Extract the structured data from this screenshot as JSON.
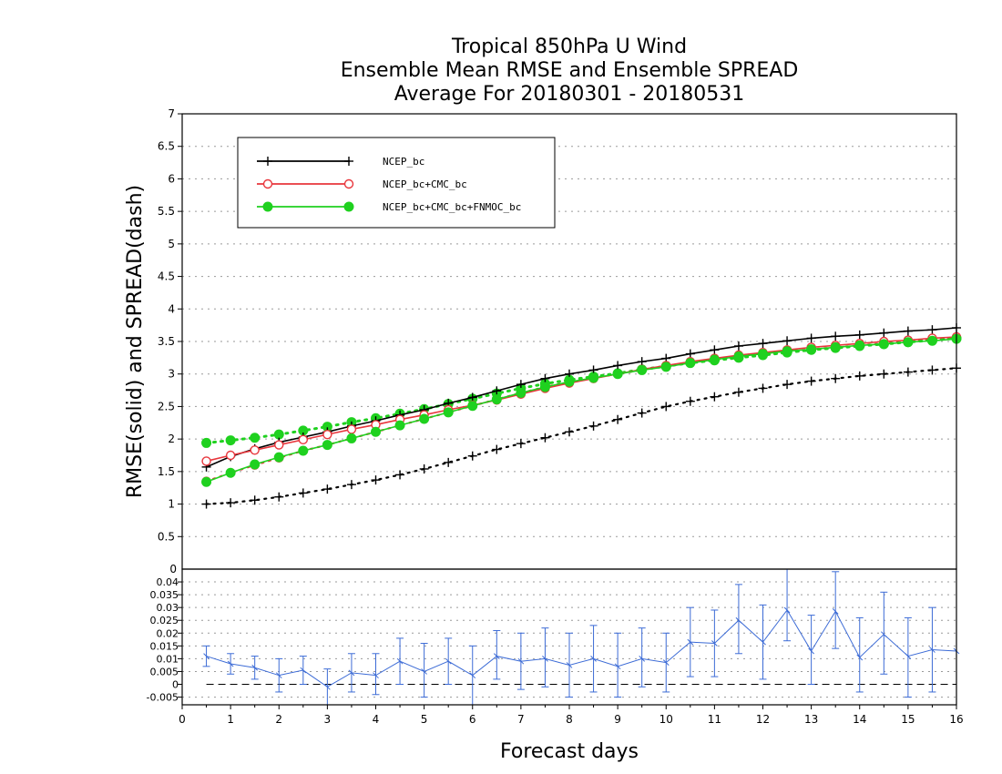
{
  "chart_data": [
    {
      "type": "line",
      "title": [
        "Tropical 850hPa U Wind",
        "Ensemble Mean RMSE and Ensemble SPREAD",
        "Average For 20180301 - 20180531"
      ],
      "ylabel": "RMSE(solid) and SPREAD(dash)",
      "xlim": [
        0,
        16
      ],
      "ylim": [
        0,
        7
      ],
      "yticks": [
        "0",
        "0.5",
        "1",
        "1.5",
        "2",
        "2.5",
        "3",
        "3.5",
        "4",
        "4.5",
        "5",
        "5.5",
        "6",
        "6.5",
        "7"
      ],
      "grid": true,
      "legend_position": "top-left",
      "x": [
        0.5,
        1,
        1.5,
        2,
        2.5,
        3,
        3.5,
        4,
        4.5,
        5,
        5.5,
        6,
        6.5,
        7,
        7.5,
        8,
        8.5,
        9,
        9.5,
        10,
        10.5,
        11,
        11.5,
        12,
        12.5,
        13,
        13.5,
        14,
        14.5,
        15,
        15.5,
        16
      ],
      "series": [
        {
          "name": "NCEP_bc",
          "color": "#000000",
          "marker": "plus",
          "rmse": [
            1.57,
            1.73,
            1.85,
            1.95,
            2.03,
            2.11,
            2.2,
            2.28,
            2.37,
            2.45,
            2.55,
            2.64,
            2.74,
            2.84,
            2.93,
            3.0,
            3.06,
            3.13,
            3.19,
            3.24,
            3.31,
            3.37,
            3.43,
            3.47,
            3.51,
            3.55,
            3.58,
            3.6,
            3.63,
            3.66,
            3.68,
            3.71
          ],
          "spread": [
            1.0,
            1.02,
            1.06,
            1.11,
            1.17,
            1.23,
            1.3,
            1.37,
            1.45,
            1.54,
            1.64,
            1.74,
            1.84,
            1.93,
            2.02,
            2.11,
            2.2,
            2.3,
            2.4,
            2.5,
            2.58,
            2.65,
            2.72,
            2.78,
            2.84,
            2.89,
            2.93,
            2.97,
            3.0,
            3.03,
            3.06,
            3.09
          ]
        },
        {
          "name": "NCEP_bc+CMC_bc",
          "color": "#e8363c",
          "marker": "open-circle",
          "rmse": [
            1.66,
            1.75,
            1.83,
            1.91,
            1.99,
            2.07,
            2.15,
            2.22,
            2.3,
            2.37,
            2.45,
            2.52,
            2.6,
            2.69,
            2.78,
            2.86,
            2.93,
            3.0,
            3.07,
            3.13,
            3.19,
            3.24,
            3.29,
            3.33,
            3.37,
            3.41,
            3.44,
            3.47,
            3.5,
            3.52,
            3.55,
            3.57
          ],
          "spread": [
            1.35,
            1.48,
            1.6,
            1.71,
            1.82,
            1.91,
            2.01,
            2.11,
            2.21,
            2.31,
            2.41,
            2.51,
            2.61,
            2.71,
            2.8,
            2.88,
            2.94,
            3.0,
            3.06,
            3.12,
            3.17,
            3.22,
            3.27,
            3.31,
            3.35,
            3.38,
            3.41,
            3.44,
            3.47,
            3.5,
            3.53,
            3.56
          ]
        },
        {
          "name": "NCEP_bc+CMC_bc+FNMOC_bc",
          "color": "#1fd11f",
          "marker": "filled-circle",
          "rmse": [
            1.34,
            1.48,
            1.61,
            1.72,
            1.82,
            1.91,
            2.01,
            2.11,
            2.21,
            2.31,
            2.41,
            2.51,
            2.61,
            2.71,
            2.8,
            2.88,
            2.94,
            3.0,
            3.06,
            3.11,
            3.17,
            3.22,
            3.27,
            3.31,
            3.35,
            3.38,
            3.41,
            3.44,
            3.46,
            3.49,
            3.51,
            3.54
          ],
          "spread": [
            1.94,
            1.98,
            2.02,
            2.07,
            2.13,
            2.19,
            2.26,
            2.32,
            2.39,
            2.46,
            2.54,
            2.62,
            2.7,
            2.78,
            2.85,
            2.91,
            2.96,
            3.01,
            3.07,
            3.12,
            3.17,
            3.21,
            3.25,
            3.29,
            3.33,
            3.37,
            3.4,
            3.43,
            3.46,
            3.49,
            3.52,
            3.55
          ]
        }
      ]
    },
    {
      "type": "line",
      "xlabel": "Forecast days",
      "xlim": [
        0,
        16
      ],
      "ylim": [
        -0.008,
        0.045
      ],
      "xticks": [
        "0",
        "1",
        "2",
        "3",
        "4",
        "5",
        "6",
        "7",
        "8",
        "9",
        "10",
        "11",
        "12",
        "13",
        "14",
        "15",
        "16"
      ],
      "yticks": [
        "-0.005",
        "0",
        "0.005",
        "0.01",
        "0.015",
        "0.02",
        "0.025",
        "0.03",
        "0.035",
        "0.04"
      ],
      "top_label": "0",
      "color": "#3c6bd6",
      "zero_line": true,
      "x": [
        0.5,
        1,
        1.5,
        2,
        2.5,
        3,
        3.5,
        4,
        4.5,
        5,
        5.5,
        6,
        6.5,
        7,
        7.5,
        8,
        8.5,
        9,
        9.5,
        10,
        10.5,
        11,
        11.5,
        12,
        12.5,
        13,
        13.5,
        14,
        14.5,
        15,
        15.5,
        16
      ],
      "values": [
        0.011,
        0.008,
        0.0065,
        0.0035,
        0.0055,
        -0.001,
        0.0045,
        0.0035,
        0.009,
        0.005,
        0.009,
        0.0035,
        0.011,
        0.009,
        0.01,
        0.0075,
        0.01,
        0.007,
        0.01,
        0.0085,
        0.0165,
        0.016,
        0.025,
        0.0165,
        0.029,
        0.013,
        0.0285,
        0.0105,
        0.0195,
        0.011,
        0.0135,
        0.013
      ],
      "err_low": [
        0.007,
        0.004,
        0.002,
        -0.003,
        0.0,
        -0.008,
        -0.003,
        -0.004,
        0.0,
        -0.005,
        0.0,
        -0.008,
        0.002,
        -0.002,
        -0.001,
        -0.005,
        -0.003,
        -0.005,
        -0.001,
        -0.003,
        0.003,
        0.003,
        0.012,
        0.002,
        0.017,
        0.0,
        0.014,
        -0.003,
        0.004,
        -0.005,
        -0.003,
        null
      ],
      "err_high": [
        0.015,
        0.012,
        0.011,
        0.01,
        0.011,
        0.006,
        0.012,
        0.012,
        0.018,
        0.016,
        0.018,
        0.015,
        0.021,
        0.02,
        0.022,
        0.02,
        0.023,
        0.02,
        0.022,
        0.02,
        0.03,
        0.029,
        0.039,
        0.031,
        0.045,
        0.027,
        0.044,
        0.026,
        0.036,
        0.026,
        0.03,
        null
      ]
    }
  ]
}
